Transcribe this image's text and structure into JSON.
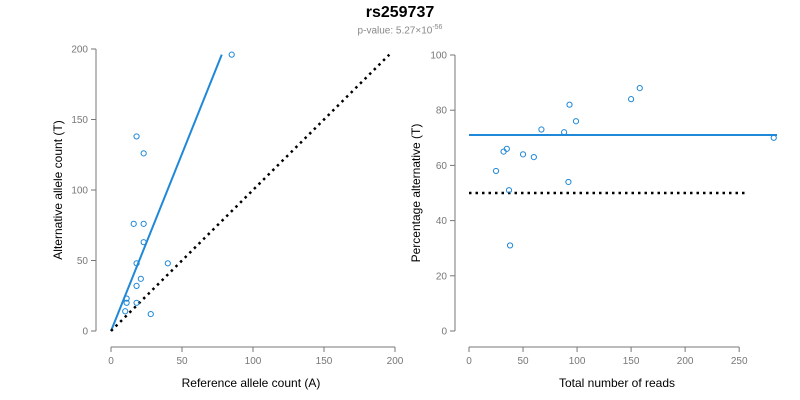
{
  "title": "rs259737",
  "subtitle": {
    "prefix": "p-value: 5.27×10",
    "exponent": "-56"
  },
  "colors": {
    "fit_line": "#1f88d8",
    "point": "#1f88d8",
    "reference_line": "#000000",
    "axis": "#777777"
  },
  "chart_data": [
    {
      "type": "scatter",
      "title": "",
      "xlabel": "Reference allele count (A)",
      "ylabel": "Alternative allele count (T)",
      "xlim": [
        0,
        200
      ],
      "ylim": [
        0,
        200
      ],
      "xticks": [
        "0",
        "50",
        "100",
        "150",
        "200"
      ],
      "yticks": [
        "0",
        "50",
        "100",
        "150",
        "200"
      ],
      "x": [
        85,
        18,
        23,
        16,
        23,
        23,
        18,
        21,
        40,
        18,
        11,
        11,
        10,
        28,
        18
      ],
      "y": [
        196,
        138,
        126,
        76,
        76,
        63,
        48,
        37,
        48,
        32,
        23,
        20,
        14,
        12,
        20
      ],
      "lines": [
        {
          "kind": "fit",
          "style": "solid",
          "x": [
            0,
            78
          ],
          "y": [
            0,
            196
          ]
        },
        {
          "kind": "reference",
          "style": "dotted",
          "x": [
            0,
            196
          ],
          "y": [
            0,
            196
          ]
        }
      ],
      "grid": false
    },
    {
      "type": "scatter",
      "title": "",
      "xlabel": "Total number of reads",
      "ylabel": "Percentage alternative (T)",
      "xlim": [
        0,
        285
      ],
      "ylim": [
        0,
        100
      ],
      "xticks": [
        "0",
        "50",
        "100",
        "150",
        "200",
        "250"
      ],
      "yticks": [
        "0",
        "20",
        "40",
        "60",
        "80",
        "100"
      ],
      "x": [
        25,
        32,
        35,
        37,
        38,
        50,
        60,
        67,
        88,
        92,
        93,
        99,
        150,
        158,
        282
      ],
      "y": [
        58,
        65,
        66,
        51,
        31,
        64,
        63,
        73,
        72,
        54,
        82,
        76,
        84,
        88,
        70
      ],
      "lines": [
        {
          "kind": "fit",
          "style": "solid",
          "x": [
            0,
            285
          ],
          "y": [
            71,
            71
          ]
        },
        {
          "kind": "reference",
          "style": "dotted",
          "x": [
            0,
            255
          ],
          "y": [
            50,
            50
          ]
        }
      ],
      "grid": false
    }
  ]
}
